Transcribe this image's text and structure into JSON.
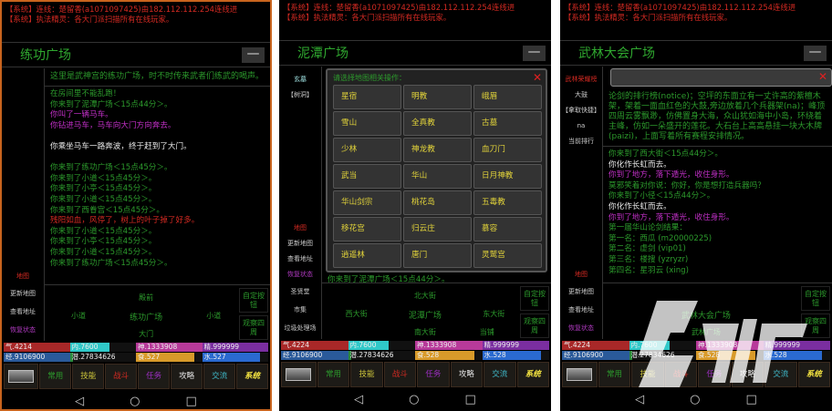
{
  "colors": {
    "green": "#2c9a2c",
    "red": "#d42a22",
    "magenta": "#c02fc6",
    "white": "#e8e8e8",
    "yellow": "#e3d43a",
    "cyan": "#3fb8c8"
  },
  "system_messages": [
    "【系统】连线：楚留香(a1071097425)由182.112.112.254连线进",
    "【系统】执法精灵：各大门派扫描所有在线玩家。"
  ],
  "minimize_label": "—",
  "tabs": [
    {
      "label": "常用",
      "color": "#2c9a2c"
    },
    {
      "label": "技能",
      "color": "#c9c23a"
    },
    {
      "label": "战斗",
      "color": "#d42a22"
    },
    {
      "label": "任务",
      "color": "#a02fc6"
    },
    {
      "label": "攻略",
      "color": "#e8e8e8"
    },
    {
      "label": "交流",
      "color": "#3fb8c8"
    },
    {
      "label": "系统",
      "color": "#f0e040"
    }
  ],
  "nav_icons": [
    "back-icon",
    "home-icon",
    "recent-apps-icon"
  ],
  "watermark": {
    "text": "九游"
  },
  "phones": [
    {
      "title": "练功广场",
      "side_top": [],
      "side_bottom": [
        {
          "label": "地图",
          "color": "#d42a22"
        }
      ],
      "map_side": [
        {
          "label": "更新地图",
          "color": "#ccc"
        },
        {
          "label": "查看地址",
          "color": "#ccc"
        },
        {
          "label": "恢复状态",
          "color": "#b03ac0"
        }
      ],
      "description": "这里是武神宫的练功广场，时不时传来武者们练武的喝声。",
      "log": [
        {
          "t": "在房间里不能乱跑！",
          "c": "green"
        },
        {
          "t": "你来到了泥潭广场＜15点44分＞。",
          "c": "green"
        },
        {
          "t": "你叫了一辆马车。",
          "c": "magenta"
        },
        {
          "t": "你钻进马车，马车向大门方向奔去。",
          "c": "magenta"
        },
        {
          "t": "",
          "c": "green"
        },
        {
          "t": "你乘坐马车一路奔波，终于赶到了大门。",
          "c": "white"
        },
        {
          "t": "",
          "c": "green"
        },
        {
          "t": "你来到了练功广场＜15点45分＞。",
          "c": "green"
        },
        {
          "t": "你来到了小道＜15点45分＞。",
          "c": "green"
        },
        {
          "t": "你来到了小亭＜15点45分＞。",
          "c": "green"
        },
        {
          "t": "你来到了小道＜15点45分＞。",
          "c": "green"
        },
        {
          "t": "你来到了西眷宫＜15点45分＞。",
          "c": "green"
        },
        {
          "t": "残阳如血，风停了，树上的叶子掉了好多。",
          "c": "red"
        },
        {
          "t": "你来到了小道＜15点45分＞。",
          "c": "green"
        },
        {
          "t": "你来到了小亭＜15点45分＞。",
          "c": "green"
        },
        {
          "t": "你来到了小道＜15点45分＞。",
          "c": "green"
        },
        {
          "t": "你来到了练功广场＜15点45分＞。",
          "c": "green"
        }
      ],
      "map": {
        "north": "殿前",
        "west": "小道",
        "center": "练功广场",
        "east": "小道",
        "south": "大门",
        "southeast": ""
      },
      "buttons": [
        "自定按钮",
        "观察四周"
      ],
      "stats": [
        {
          "label": "气.4214",
          "fill": 1,
          "color": "#a82828"
        },
        {
          "label": "内.7600",
          "fill": 0.6,
          "color": "#30c8c8"
        },
        {
          "label": "神.1333908",
          "fill": 1,
          "color": "#b83a9a"
        },
        {
          "label": "精.999999",
          "fill": 1,
          "color": "#7a2ea0"
        },
        {
          "label": "经.9106900",
          "fill": 1,
          "color": "#2a5a9a"
        },
        {
          "label": "潜.27834626",
          "fill": 0.05,
          "color": "#2a8a3a"
        },
        {
          "label": "食.527",
          "fill": 0.88,
          "color": "#d89a2a"
        },
        {
          "label": "水.527",
          "fill": 0.88,
          "color": "#2a6ad0"
        }
      ]
    },
    {
      "title": "泥潭广场",
      "side_top": [
        {
          "label": "玄墓",
          "color": "#9fe0e0"
        },
        {
          "label": "【树洞】",
          "color": "#ccc"
        }
      ],
      "side_bottom": [
        {
          "label": "地图",
          "color": "#d42a22"
        },
        {
          "label": "更新地图",
          "color": "#ccc"
        },
        {
          "label": "查看地址",
          "color": "#ccc"
        },
        {
          "label": "恢复状态",
          "color": "#b03ac0"
        }
      ],
      "map_side": [
        {
          "label": "圣贤堂",
          "color": "#ccc"
        },
        {
          "label": "市集",
          "color": "#ccc"
        },
        {
          "label": "垃圾处理场",
          "color": "#ccc"
        }
      ],
      "dialog": {
        "title": "请选择地图相关操作：",
        "close": "✕",
        "options": [
          "星宿",
          "明教",
          "峨眉",
          "雪山",
          "全真教",
          "古墓",
          "少林",
          "神龙教",
          "血刀门",
          "武当",
          "华山",
          "日月神教",
          "华山剑宗",
          "桃花岛",
          "五毒教",
          "移花宫",
          "归云庄",
          "慕容",
          "逍遥林",
          "唐门",
          "灵鹫宫"
        ]
      },
      "log": [
        {
          "t": "你来到了泥潭广场＜15点44分＞。",
          "c": "green"
        }
      ],
      "map": {
        "north": "北大街",
        "west": "西大街",
        "center": "泥潭广场",
        "east": "东大街",
        "south": "南大街",
        "southeast": "当铺"
      },
      "buttons": [
        "自定按钮",
        "观察四周"
      ],
      "stats": [
        {
          "label": "气.4224",
          "fill": 1,
          "color": "#a82828"
        },
        {
          "label": "内.7600",
          "fill": 0.6,
          "color": "#30c8c8"
        },
        {
          "label": "神.1333908",
          "fill": 1,
          "color": "#b83a9a"
        },
        {
          "label": "精.999999",
          "fill": 1,
          "color": "#7a2ea0"
        },
        {
          "label": "经.9106900",
          "fill": 1,
          "color": "#2a5a9a"
        },
        {
          "label": "潜.27834626",
          "fill": 0.05,
          "color": "#2a8a3a"
        },
        {
          "label": "食.528",
          "fill": 0.88,
          "color": "#d89a2a"
        },
        {
          "label": "水.528",
          "fill": 0.88,
          "color": "#2a6ad0"
        }
      ]
    },
    {
      "title": "武林大会广场",
      "side_top": [
        {
          "label": "武林荣耀榜",
          "color": "#d42a22"
        },
        {
          "label": "大鼓",
          "color": "#ccc"
        },
        {
          "label": "【拿取快捷】",
          "color": "#ccc"
        },
        {
          "label": "na",
          "color": "#ccc"
        },
        {
          "label": "当前排行",
          "color": "#ccc"
        }
      ],
      "side_bottom": [
        {
          "label": "地图",
          "color": "#d42a22"
        }
      ],
      "map_side": [
        {
          "label": "更新地图",
          "color": "#ccc"
        },
        {
          "label": "查看地址",
          "color": "#ccc"
        },
        {
          "label": "恢复状态",
          "color": "#b03ac0"
        }
      ],
      "popup": {
        "close": "✕"
      },
      "description": "论剑的排行榜(notice)；空坪的东面立有一丈许高的紫檀木架，架着一面血红色的大鼓,旁边放着几个兵器架(na)；峰顶四周云雾飘渺，仿佛置身大海，众山犹如海中小岛，环绕着主峰，仿如一朵盛开的莲花。大石台上高高悬挂一块大木牌(paizi)，上面写着所有赛程安排情况。",
      "log": [
        {
          "t": "你来到了西大街＜15点44分＞。",
          "c": "green"
        },
        {
          "t": "你化作长虹而去。",
          "c": "white"
        },
        {
          "t": "你到了地方，落下遁光，收住身形。",
          "c": "magenta"
        },
        {
          "t": "莫邪笑着对你说：你好，你是想打造兵器吗？",
          "c": "green"
        },
        {
          "t": "你来到了小径＜15点44分＞。",
          "c": "green"
        },
        {
          "t": "你化作长虹而去。",
          "c": "white"
        },
        {
          "t": "你到了地方，落下遁光，收住身形。",
          "c": "magenta"
        },
        {
          "t": "第一届华山论剑结果：",
          "c": "green"
        },
        {
          "t": "第一名：西瓜 (m20000225)",
          "c": "green"
        },
        {
          "t": "第二名：虚剑 (vip01)",
          "c": "green"
        },
        {
          "t": "第三名：楼搜 (yzryzr)",
          "c": "green"
        },
        {
          "t": "第四名：星羽云 (xing)",
          "c": "green"
        }
      ],
      "map": {
        "north": "",
        "west": "",
        "center": "武林大会广场",
        "east": "",
        "south": "武林广场",
        "southeast": ""
      },
      "buttons": [
        "自定按钮",
        "观察四周"
      ],
      "stats": [
        {
          "label": "气.4224",
          "fill": 1,
          "color": "#a82828"
        },
        {
          "label": "内.7600",
          "fill": 0.6,
          "color": "#30c8c8"
        },
        {
          "label": "神.1333908",
          "fill": 1,
          "color": "#b83a9a"
        },
        {
          "label": "精.999999",
          "fill": 1,
          "color": "#7a2ea0"
        },
        {
          "label": "经.9106900",
          "fill": 1,
          "color": "#2a5a9a"
        },
        {
          "label": "潜.27834626",
          "fill": 0.05,
          "color": "#2a8a3a"
        },
        {
          "label": "食.528",
          "fill": 0.88,
          "color": "#d89a2a"
        },
        {
          "label": "水.528",
          "fill": 0.88,
          "color": "#2a6ad0"
        }
      ]
    }
  ]
}
